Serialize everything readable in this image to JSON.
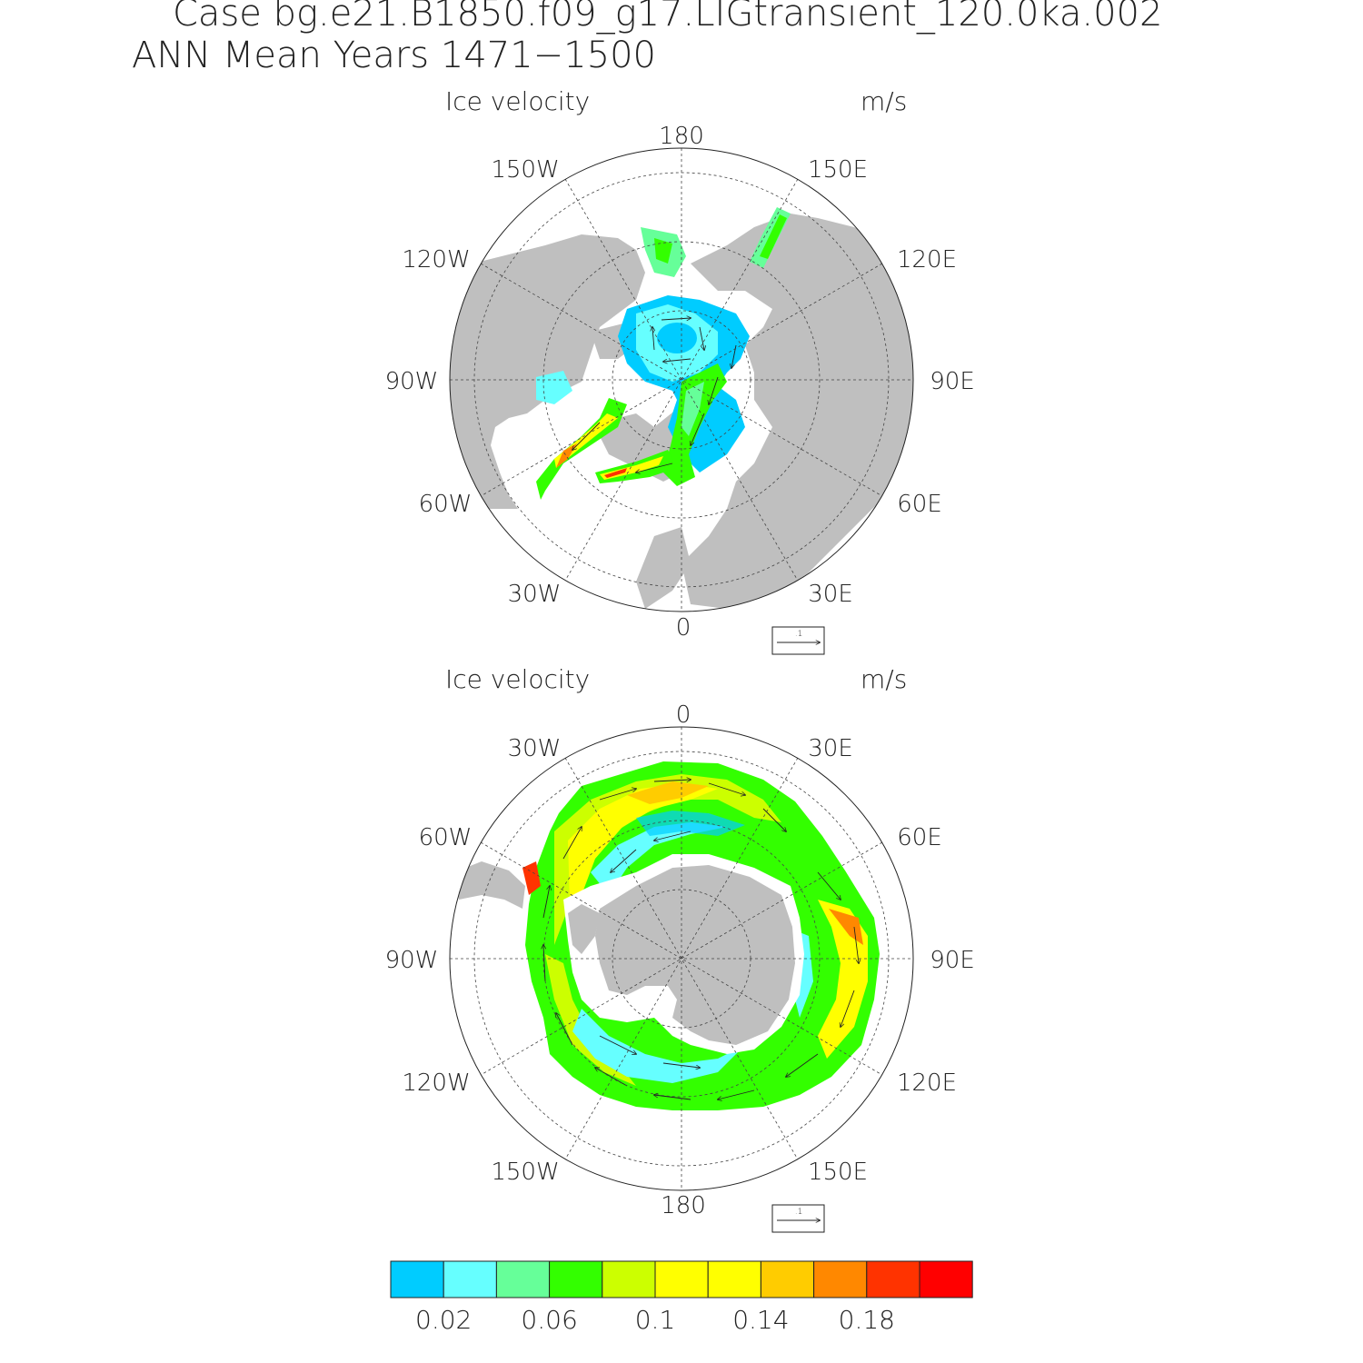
{
  "header": {
    "case_line": "Case bg.e21.B1850.f09_g17.LIGtransient_120.0ka.002",
    "period_line": "ANN Mean    Years 1471−1500"
  },
  "panels": [
    {
      "id": "north",
      "title": "Ice velocity",
      "units": "m/s",
      "lon_labels": {
        "top": "180",
        "top_left": "150W",
        "top_right": "150E",
        "upper_left": "120W",
        "upper_right": "120E",
        "left": "90W",
        "right": "90E",
        "lower_left": "60W",
        "lower_right": "60E",
        "bottom_left": "30W",
        "bottom_right": "30E",
        "bottom": "0"
      },
      "ref_vector_label": ".1"
    },
    {
      "id": "south",
      "title": "Ice velocity",
      "units": "m/s",
      "lon_labels": {
        "top": "0",
        "top_left": "30W",
        "top_right": "30E",
        "upper_left": "60W",
        "upper_right": "60E",
        "left": "90W",
        "right": "90E",
        "lower_left": "120W",
        "lower_right": "120E",
        "bottom_left": "150W",
        "bottom_right": "150E",
        "bottom": "180"
      },
      "ref_vector_label": ".1"
    }
  ],
  "colorbar": {
    "colors": [
      "#00ccff",
      "#66ffff",
      "#66ff99",
      "#33ff00",
      "#ccff00",
      "#ffff00",
      "#ffff00",
      "#ffcc00",
      "#ff8800",
      "#ff3300",
      "#ff0000"
    ],
    "tick_labels": [
      "0.02",
      "0.06",
      "0.1",
      "0.14",
      "0.18"
    ]
  },
  "colors": {
    "land": "#bfbfbf",
    "frame": "#222222"
  }
}
